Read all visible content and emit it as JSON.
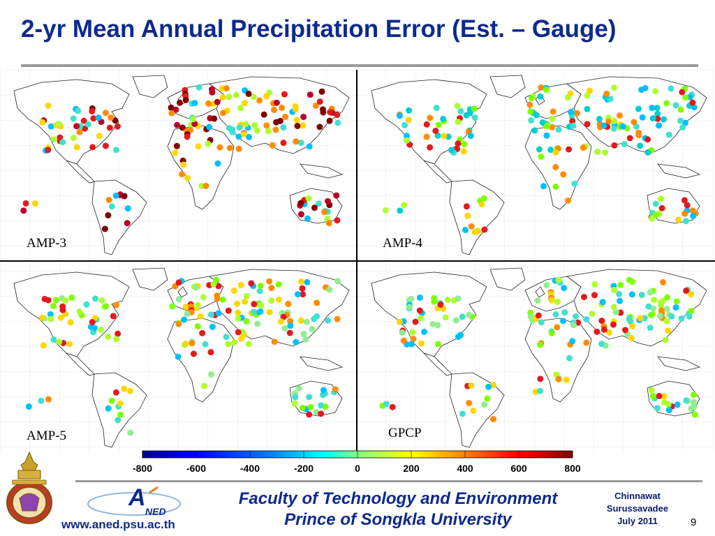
{
  "slide": {
    "title": "2-yr Mean Annual Precipitation Error (Est. – Gauge)",
    "page_number": "9"
  },
  "panels": [
    {
      "label": "AMP-3"
    },
    {
      "label": "AMP-4"
    },
    {
      "label": "AMP-5"
    },
    {
      "label": "GPCP"
    }
  ],
  "colorbar": {
    "tick_labels": [
      "-800",
      "-600",
      "-400",
      "-200",
      "0",
      "200",
      "400",
      "600",
      "800"
    ],
    "colors": [
      "#00008f",
      "#0000ff",
      "#0080ff",
      "#00ffff",
      "#80ff80",
      "#ffff00",
      "#ff8000",
      "#ff0000",
      "#800000"
    ]
  },
  "footer": {
    "line1": "Faculty of Technology and Environment",
    "line2": "Prince of Songkla University",
    "url": "www.aned.psu.ac.th",
    "aned_logo_text": "NED",
    "credit_name1": "Chinnawat",
    "credit_name2": "Surussavadee",
    "credit_date": "July 2011"
  }
}
